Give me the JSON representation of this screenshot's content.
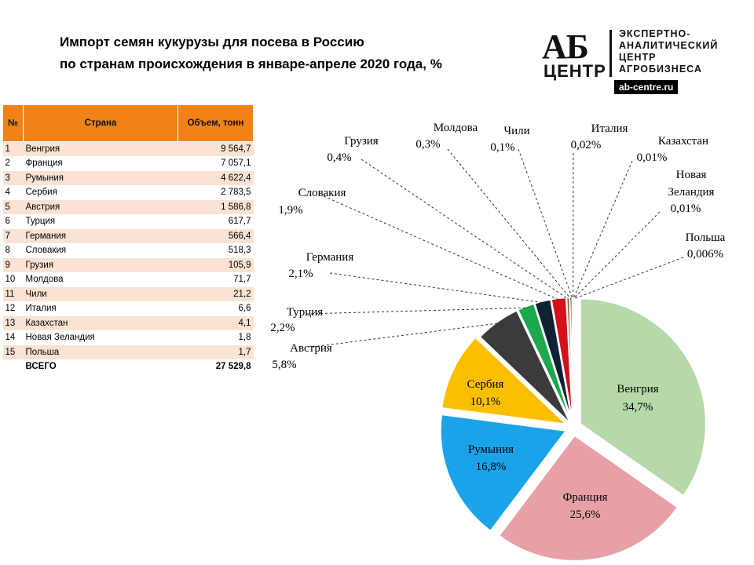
{
  "title": {
    "line1": "Импорт семян кукурузы для посева в Россию",
    "line2": "по странам происхождения в январе-апреле 2020 года, %"
  },
  "logo": {
    "mark_top": "АБ",
    "mark_bottom": "ЦЕНТР",
    "text_line1": "ЭКСПЕРТНО-",
    "text_line2": "АНАЛИТИЧЕСКИЙ",
    "text_line3": "ЦЕНТР",
    "text_line4": "АГРОБИЗНЕСА",
    "url": "ab-centre.ru"
  },
  "table": {
    "headers": [
      "№",
      "Страна",
      "Объем, тонн"
    ],
    "rows": [
      {
        "n": "1",
        "country": "Венгрия",
        "volume": "9 564,7"
      },
      {
        "n": "2",
        "country": "Франция",
        "volume": "7 057,1"
      },
      {
        "n": "3",
        "country": "Румыния",
        "volume": "4 622,4"
      },
      {
        "n": "4",
        "country": "Сербия",
        "volume": "2 783,5"
      },
      {
        "n": "5",
        "country": "Австрия",
        "volume": "1 586,8"
      },
      {
        "n": "6",
        "country": "Турция",
        "volume": "617,7"
      },
      {
        "n": "7",
        "country": "Германия",
        "volume": "566,4"
      },
      {
        "n": "8",
        "country": "Словакия",
        "volume": "518,3"
      },
      {
        "n": "9",
        "country": "Грузия",
        "volume": "105,9"
      },
      {
        "n": "10",
        "country": "Молдова",
        "volume": "71,7"
      },
      {
        "n": "11",
        "country": "Чили",
        "volume": "21,2"
      },
      {
        "n": "12",
        "country": "Италия",
        "volume": "6,6"
      },
      {
        "n": "13",
        "country": "Казахстан",
        "volume": "4,1"
      },
      {
        "n": "14",
        "country": "Новая Зеландия",
        "volume": "1,8"
      },
      {
        "n": "15",
        "country": "Польша",
        "volume": "1,7"
      }
    ],
    "total_label": "ВСЕГО",
    "total_value": "27 529,8"
  },
  "chart_data": {
    "type": "pie",
    "title": "Импорт семян кукурузы для посева в Россию по странам происхождения в январе-апреле 2020 года, %",
    "slices": [
      {
        "name": "Венгрия",
        "value": 34.7,
        "label": "34,7%",
        "color": "#b5d9a8"
      },
      {
        "name": "Франция",
        "value": 25.6,
        "label": "25,6%",
        "color": "#e7a1a6"
      },
      {
        "name": "Румыния",
        "value": 16.8,
        "label": "16,8%",
        "color": "#1aa3e8"
      },
      {
        "name": "Сербия",
        "value": 10.1,
        "label": "10,1%",
        "color": "#fbbf00"
      },
      {
        "name": "Австрия",
        "value": 5.8,
        "label": "5,8%",
        "color": "#3b3b3b"
      },
      {
        "name": "Турция",
        "value": 2.2,
        "label": "2,2%",
        "color": "#1ea84e"
      },
      {
        "name": "Германия",
        "value": 2.1,
        "label": "2,1%",
        "color": "#0d2233"
      },
      {
        "name": "Словакия",
        "value": 1.9,
        "label": "1,9%",
        "color": "#d4111a"
      },
      {
        "name": "Грузия",
        "value": 0.4,
        "label": "0,4%",
        "color": "#9b5a2a"
      },
      {
        "name": "Молдова",
        "value": 0.3,
        "label": "0,3%",
        "color": "#7a3a10"
      },
      {
        "name": "Чили",
        "value": 0.1,
        "label": "0,1%",
        "color": "#1b4f8a"
      },
      {
        "name": "Италия",
        "value": 0.02,
        "label": "0,02%",
        "color": "#6b8e23"
      },
      {
        "name": "Казахстан",
        "value": 0.01,
        "label": "0,01%",
        "color": "#8b0000"
      },
      {
        "name": "Новая Зеландия",
        "value": 0.01,
        "label": "0,01%",
        "color": "#444444"
      },
      {
        "name": "Польша",
        "value": 0.006,
        "label": "0,006%",
        "color": "#c08040"
      }
    ]
  }
}
